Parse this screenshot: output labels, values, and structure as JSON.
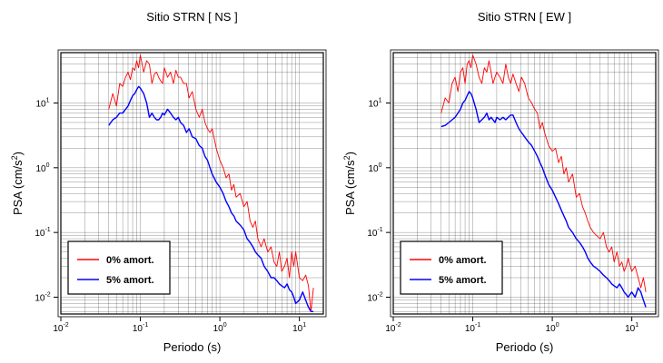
{
  "chart_data": [
    {
      "type": "line",
      "title": "Sitio STRN [ NS ]",
      "xlabel": "Periodo (s)",
      "ylabel": {
        "base": "PSA (cm/s",
        "sup": "2",
        "end": ")"
      },
      "xscale": "log",
      "yscale": "log",
      "xlim": [
        0.01,
        20
      ],
      "ylim": [
        0.0055,
        60
      ],
      "xticks": [
        0.01,
        0.1,
        1,
        10
      ],
      "xtick_labels": [
        [
          "10",
          "-2"
        ],
        [
          "10",
          "-1"
        ],
        [
          "10",
          "0"
        ],
        [
          "10",
          "1"
        ]
      ],
      "yticks": [
        0.01,
        0.1,
        1,
        10
      ],
      "ytick_labels": [
        [
          "10",
          "-2"
        ],
        [
          "10",
          "-1"
        ],
        [
          "10",
          "0"
        ],
        [
          "10",
          "1"
        ]
      ],
      "grid": true,
      "legend_position": "bottom-left",
      "series": [
        {
          "name": "0% amort.",
          "color": "#ff0000",
          "x": [
            0.04,
            0.045,
            0.05,
            0.055,
            0.06,
            0.065,
            0.07,
            0.075,
            0.08,
            0.085,
            0.09,
            0.095,
            0.1,
            0.11,
            0.12,
            0.13,
            0.14,
            0.15,
            0.16,
            0.17,
            0.18,
            0.19,
            0.2,
            0.22,
            0.24,
            0.26,
            0.28,
            0.3,
            0.32,
            0.35,
            0.38,
            0.41,
            0.45,
            0.5,
            0.55,
            0.6,
            0.65,
            0.7,
            0.75,
            0.8,
            0.9,
            1.0,
            1.1,
            1.2,
            1.3,
            1.4,
            1.5,
            1.6,
            1.8,
            2.0,
            2.2,
            2.4,
            2.6,
            2.8,
            3.0,
            3.3,
            3.6,
            4.0,
            4.4,
            4.8,
            5.2,
            5.6,
            6.0,
            6.5,
            7.0,
            7.5,
            8.0,
            8.5,
            9.0,
            10,
            11,
            12,
            13,
            14,
            15
          ],
          "y": [
            8,
            14,
            9,
            20,
            18,
            25,
            30,
            23,
            35,
            32,
            45,
            35,
            55,
            30,
            45,
            40,
            20,
            28,
            30,
            25,
            22,
            20,
            35,
            25,
            30,
            20,
            32,
            25,
            25,
            20,
            20,
            12,
            15,
            8,
            6,
            8,
            5,
            4,
            3.5,
            4,
            2,
            1.3,
            1.0,
            0.7,
            0.8,
            0.45,
            0.55,
            0.35,
            0.4,
            0.25,
            0.3,
            0.15,
            0.12,
            0.15,
            0.08,
            0.06,
            0.08,
            0.05,
            0.06,
            0.035,
            0.03,
            0.05,
            0.025,
            0.03,
            0.04,
            0.02,
            0.05,
            0.03,
            0.05,
            0.02,
            0.018,
            0.022,
            0.015,
            0.006,
            0.014
          ]
        },
        {
          "name": "5% amort.",
          "color": "#0000ff",
          "x": [
            0.04,
            0.045,
            0.05,
            0.055,
            0.06,
            0.065,
            0.07,
            0.075,
            0.08,
            0.085,
            0.09,
            0.095,
            0.1,
            0.11,
            0.12,
            0.13,
            0.14,
            0.15,
            0.16,
            0.17,
            0.18,
            0.19,
            0.2,
            0.22,
            0.24,
            0.26,
            0.28,
            0.3,
            0.32,
            0.35,
            0.38,
            0.41,
            0.45,
            0.5,
            0.55,
            0.6,
            0.65,
            0.7,
            0.75,
            0.8,
            0.9,
            1.0,
            1.1,
            1.2,
            1.3,
            1.4,
            1.5,
            1.6,
            1.8,
            2.0,
            2.2,
            2.4,
            2.6,
            2.8,
            3.0,
            3.3,
            3.6,
            4.0,
            4.4,
            4.8,
            5.2,
            5.6,
            6.0,
            6.5,
            7.0,
            7.5,
            8.0,
            8.5,
            9.0,
            10,
            11,
            12,
            13,
            14,
            15
          ],
          "y": [
            4.5,
            5.5,
            6,
            7,
            7,
            8,
            9,
            11,
            13,
            14,
            16,
            18,
            17,
            14,
            10,
            6,
            7,
            6,
            5.5,
            5.5,
            6,
            7,
            6.5,
            8,
            7,
            6,
            5.5,
            6,
            5,
            4.5,
            3.5,
            4,
            3,
            2.8,
            2.2,
            2,
            1.5,
            1.3,
            1.0,
            0.8,
            0.6,
            0.5,
            0.4,
            0.3,
            0.25,
            0.2,
            0.18,
            0.15,
            0.13,
            0.11,
            0.08,
            0.07,
            0.06,
            0.05,
            0.045,
            0.04,
            0.03,
            0.025,
            0.02,
            0.02,
            0.018,
            0.016,
            0.015,
            0.014,
            0.016,
            0.013,
            0.012,
            0.01,
            0.008,
            0.009,
            0.012,
            0.009,
            0.007,
            0.006,
            0.006
          ]
        }
      ]
    },
    {
      "type": "line",
      "title": "Sitio STRN [ EW ]",
      "xlabel": "Periodo (s)",
      "ylabel": {
        "base": "PSA (cm/s",
        "sup": "2",
        "end": ")"
      },
      "xscale": "log",
      "yscale": "log",
      "xlim": [
        0.01,
        20
      ],
      "ylim": [
        0.0055,
        60
      ],
      "xticks": [
        0.01,
        0.1,
        1,
        10
      ],
      "xtick_labels": [
        [
          "10",
          "-2"
        ],
        [
          "10",
          "-1"
        ],
        [
          "10",
          "0"
        ],
        [
          "10",
          "1"
        ]
      ],
      "yticks": [
        0.01,
        0.1,
        1,
        10
      ],
      "ytick_labels": [
        [
          "10",
          "-2"
        ],
        [
          "10",
          "-1"
        ],
        [
          "10",
          "0"
        ],
        [
          "10",
          "1"
        ]
      ],
      "grid": true,
      "legend_position": "bottom-left",
      "series": [
        {
          "name": "0% amort.",
          "color": "#ff0000",
          "x": [
            0.04,
            0.045,
            0.05,
            0.055,
            0.06,
            0.065,
            0.07,
            0.075,
            0.08,
            0.085,
            0.09,
            0.095,
            0.1,
            0.11,
            0.12,
            0.13,
            0.14,
            0.15,
            0.16,
            0.17,
            0.18,
            0.19,
            0.2,
            0.22,
            0.24,
            0.26,
            0.28,
            0.3,
            0.32,
            0.35,
            0.38,
            0.41,
            0.45,
            0.5,
            0.55,
            0.6,
            0.65,
            0.7,
            0.75,
            0.8,
            0.9,
            1.0,
            1.1,
            1.2,
            1.3,
            1.4,
            1.5,
            1.6,
            1.8,
            2.0,
            2.2,
            2.4,
            2.6,
            2.8,
            3.0,
            3.3,
            3.6,
            4.0,
            4.4,
            4.8,
            5.2,
            5.6,
            6.0,
            6.5,
            7.0,
            7.5,
            8.0,
            8.5,
            9.0,
            10,
            11,
            12,
            13,
            14,
            15
          ],
          "y": [
            7,
            12,
            10,
            20,
            25,
            15,
            30,
            35,
            20,
            40,
            45,
            35,
            55,
            40,
            25,
            20,
            35,
            30,
            45,
            30,
            20,
            25,
            30,
            25,
            20,
            40,
            25,
            20,
            28,
            20,
            15,
            25,
            20,
            12,
            10,
            8,
            7,
            4,
            5,
            3.5,
            2.2,
            1.8,
            2.0,
            1.2,
            1.5,
            0.8,
            1.0,
            0.6,
            0.8,
            0.35,
            0.4,
            0.25,
            0.2,
            0.15,
            0.12,
            0.1,
            0.09,
            0.08,
            0.1,
            0.06,
            0.05,
            0.06,
            0.035,
            0.05,
            0.03,
            0.035,
            0.025,
            0.03,
            0.04,
            0.025,
            0.03,
            0.02,
            0.014,
            0.02,
            0.012
          ]
        },
        {
          "name": "5% amort.",
          "color": "#0000ff",
          "x": [
            0.04,
            0.045,
            0.05,
            0.055,
            0.06,
            0.065,
            0.07,
            0.075,
            0.08,
            0.085,
            0.09,
            0.095,
            0.1,
            0.11,
            0.12,
            0.13,
            0.14,
            0.15,
            0.16,
            0.17,
            0.18,
            0.19,
            0.2,
            0.22,
            0.24,
            0.26,
            0.28,
            0.3,
            0.32,
            0.35,
            0.38,
            0.41,
            0.45,
            0.5,
            0.55,
            0.6,
            0.65,
            0.7,
            0.75,
            0.8,
            0.9,
            1.0,
            1.1,
            1.2,
            1.3,
            1.4,
            1.5,
            1.6,
            1.8,
            2.0,
            2.2,
            2.4,
            2.6,
            2.8,
            3.0,
            3.3,
            3.6,
            4.0,
            4.4,
            4.8,
            5.2,
            5.6,
            6.0,
            6.5,
            7.0,
            7.5,
            8.0,
            8.5,
            9.0,
            10,
            11,
            12,
            13,
            14,
            15
          ],
          "y": [
            4.3,
            4.5,
            5,
            5.5,
            6,
            7,
            8,
            10,
            11,
            13,
            15,
            14,
            12,
            8,
            5,
            5.5,
            6,
            7,
            5.5,
            6,
            5.5,
            5,
            6,
            5.5,
            6,
            5.5,
            6,
            6.5,
            6.5,
            5,
            4,
            3.5,
            3,
            2.5,
            2.2,
            1.8,
            1.5,
            1.2,
            1.0,
            0.8,
            0.55,
            0.45,
            0.35,
            0.28,
            0.22,
            0.18,
            0.15,
            0.12,
            0.1,
            0.08,
            0.07,
            0.06,
            0.05,
            0.04,
            0.035,
            0.03,
            0.028,
            0.025,
            0.022,
            0.02,
            0.018,
            0.016,
            0.015,
            0.014,
            0.016,
            0.014,
            0.012,
            0.011,
            0.01,
            0.012,
            0.01,
            0.014,
            0.012,
            0.009,
            0.007
          ]
        }
      ]
    }
  ]
}
